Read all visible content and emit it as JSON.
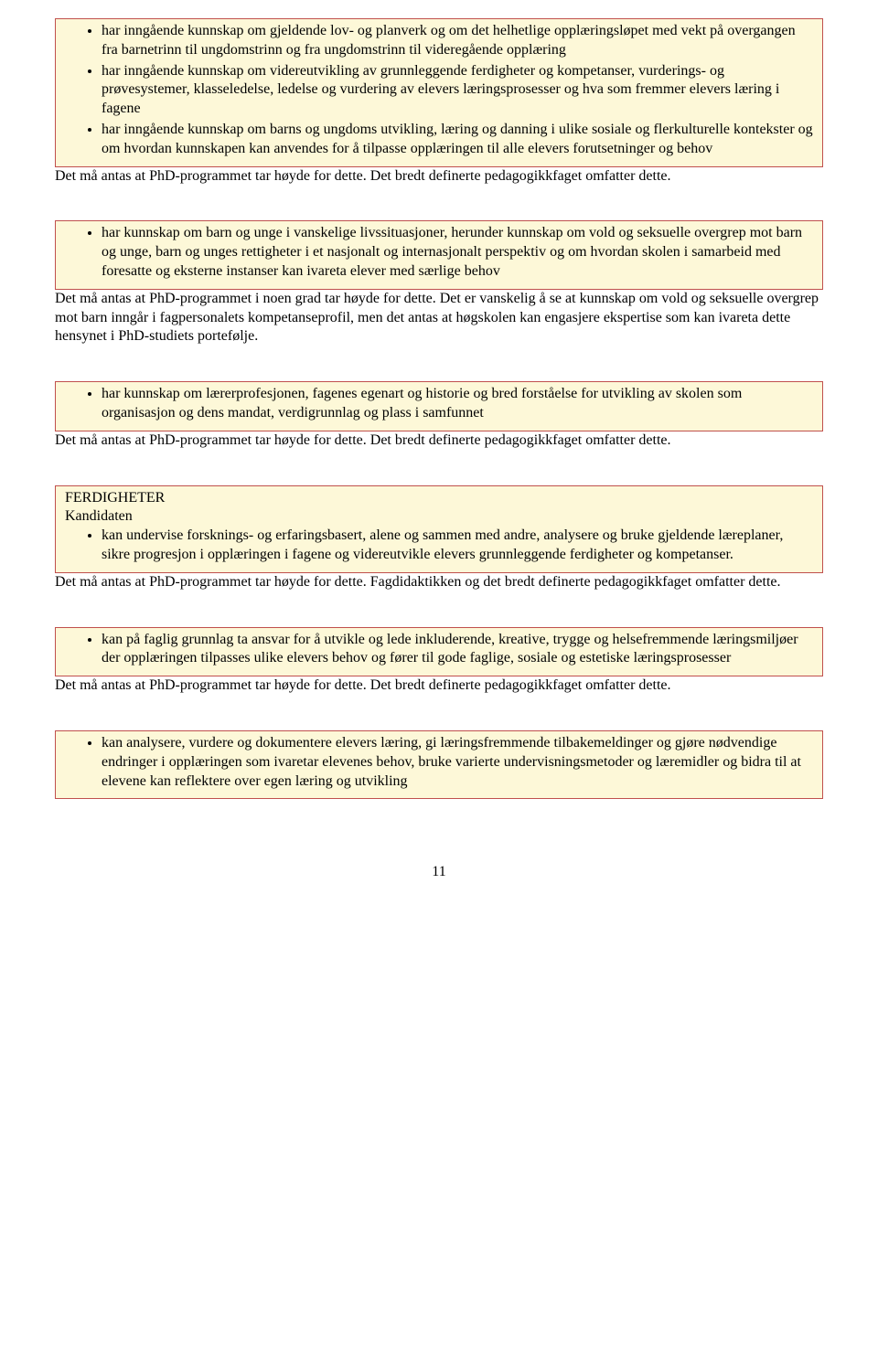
{
  "sections": [
    {
      "box": {
        "bullets": [
          "har inngående kunnskap om gjeldende lov- og planverk og om det helhetlige opplæringsløpet med vekt på overgangen fra barnetrinn til ungdomstrinn og fra ungdomstrinn til videregående opplæring",
          "har inngående kunnskap om videreutvikling av grunnleggende ferdigheter og kompetanser, vurderings- og prøvesystemer, klasseledelse, ledelse og vurdering av elevers læringsprosesser og hva som fremmer elevers læring i fagene",
          "har inngående kunnskap om barns og ungdoms utvikling, læring og danning i ulike sosiale og flerkulturelle kontekster og om hvordan kunnskapen kan anvendes for å tilpasse opplæringen til alle elevers forutsetninger og behov"
        ]
      },
      "followup": "Det må antas at PhD-programmet tar høyde for dette. Det bredt definerte pedagogikkfaget omfatter dette."
    },
    {
      "box": {
        "bullets": [
          "har kunnskap om barn og unge i vanskelige livssituasjoner, herunder kunnskap om vold og seksuelle overgrep mot barn og unge, barn og unges rettigheter i et nasjonalt og internasjonalt perspektiv og om hvordan skolen i samarbeid med foresatte og eksterne instanser kan ivareta elever med særlige behov"
        ]
      },
      "followup": "Det må antas at PhD-programmet i noen grad tar høyde for dette. Det er vanskelig å se at kunnskap om vold og seksuelle overgrep mot barn inngår i fagpersonalets kompetanseprofil, men det antas at høgskolen kan engasjere ekspertise som kan ivareta dette hensynet i PhD-studiets portefølje."
    },
    {
      "box": {
        "bullets": [
          "har kunnskap om lærerprofesjonen, fagenes egenart og historie og bred forståelse for utvikling av skolen som organisasjon og dens mandat, verdigrunnlag og plass i samfunnet"
        ]
      },
      "followup": "Det må antas at PhD-programmet tar høyde for dette. Det bredt definerte pedagogikkfaget omfatter dette."
    },
    {
      "box": {
        "preLines": [
          "FERDIGHETER",
          "Kandidaten"
        ],
        "bullets": [
          "kan undervise forsknings- og erfaringsbasert, alene og sammen med andre, analysere og bruke gjeldende læreplaner, sikre progresjon i opplæringen i fagene og videreutvikle elevers grunnleggende ferdigheter og kompetanser."
        ]
      },
      "followup": "Det må antas at PhD-programmet tar høyde for dette. Fagdidaktikken og det bredt definerte pedagogikkfaget omfatter dette."
    },
    {
      "box": {
        "bullets": [
          "kan på faglig grunnlag ta ansvar for å utvikle og lede inkluderende, kreative, trygge og helsefremmende læringsmiljøer der opplæringen tilpasses ulike elevers behov og fører til gode faglige, sosiale og estetiske læringsprosesser"
        ]
      },
      "followup": "Det må antas at PhD-programmet tar høyde for dette. Det bredt definerte pedagogikkfaget omfatter dette."
    },
    {
      "box": {
        "bullets": [
          "kan analysere, vurdere og dokumentere elevers læring, gi læringsfremmende tilbakemeldinger og gjøre nødvendige endringer i opplæringen som ivaretar elevenes behov, bruke varierte undervisningsmetoder og læremidler og bidra til at elevene kan reflektere over egen læring og utvikling"
        ]
      },
      "followup": ""
    }
  ],
  "pageNumber": "11"
}
